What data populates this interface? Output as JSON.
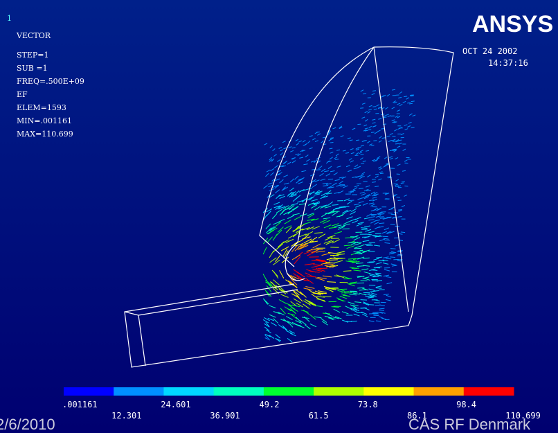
{
  "header": {
    "window_number": "1",
    "plot_type": "VECTOR",
    "info": [
      "STEP=1",
      "SUB =1",
      "FREQ=.500E+09",
      "EF",
      "ELEM=1593",
      "MIN=.001161",
      "MAX=110.699"
    ],
    "logo": "ANSYS",
    "date": "OCT 24 2002",
    "time": "14:37:16"
  },
  "legend": {
    "colors": [
      "#0000ff",
      "#0090ff",
      "#00d8ff",
      "#00ffc0",
      "#00ff30",
      "#b0ff00",
      "#ffff00",
      "#ffa000",
      "#ff0000"
    ],
    "labels": [
      ".001161",
      "12.301",
      "24.601",
      "36.901",
      "49.2",
      "61.5",
      "73.8",
      "86.1",
      "98.4",
      "110.699"
    ]
  },
  "footer": {
    "date": "2/6/2010",
    "organization": "CAS RF Denmark"
  }
}
